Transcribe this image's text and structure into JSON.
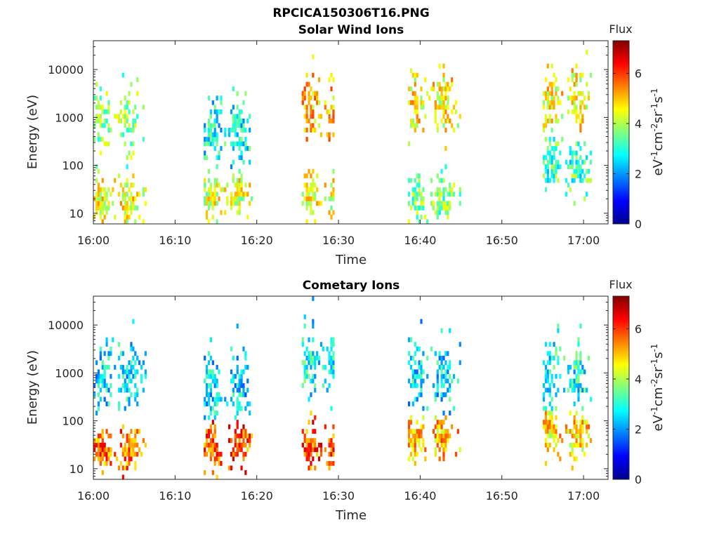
{
  "figure_title": "RPCICA150306T16.PNG",
  "chart_data": [
    {
      "type": "heatmap",
      "title": "Solar Wind Ions",
      "xlabel": "Time",
      "ylabel": "Energy (eV)",
      "x_ticks": [
        "16:00",
        "16:10",
        "16:20",
        "16:30",
        "16:40",
        "16:50",
        "17:00"
      ],
      "y_ticks": [
        "10",
        "100",
        "1000",
        "10000"
      ],
      "y_scale": "log",
      "ylim": [
        6,
        40000
      ],
      "xlim_minutes": [
        0,
        63
      ],
      "colorbar": {
        "title": "Flux",
        "label": "eV-1cm-2sr-1s-1",
        "range": [
          0,
          7.3
        ],
        "ticks": [
          "0",
          "2",
          "4",
          "6"
        ],
        "colormap": "jet"
      },
      "bursts": [
        {
          "start_min": 0.0,
          "end_min": 6.5,
          "low_e": 15,
          "low_flux": 4.5,
          "high_e": 900,
          "high_flux": 3.8
        },
        {
          "start_min": 13.5,
          "end_min": 19.5,
          "low_e": 25,
          "low_flux": 4.3,
          "high_e": 500,
          "high_flux": 2.8
        },
        {
          "start_min": 25.5,
          "end_min": 29.5,
          "low_e": 25,
          "low_flux": 4.4,
          "high_e": 1500,
          "high_flux": 5.0
        },
        {
          "start_min": 38.5,
          "end_min": 45.0,
          "low_e": 20,
          "low_flux": 3.6,
          "high_e": 1800,
          "high_flux": 4.6
        },
        {
          "start_min": 55.0,
          "end_min": 61.0,
          "low_e": 100,
          "low_flux": 3.2,
          "high_e": 2000,
          "high_flux": 4.5
        }
      ]
    },
    {
      "type": "heatmap",
      "title": "Cometary Ions",
      "xlabel": "Time",
      "ylabel": "Energy (eV)",
      "x_ticks": [
        "16:00",
        "16:10",
        "16:20",
        "16:30",
        "16:40",
        "16:50",
        "17:00"
      ],
      "y_ticks": [
        "10",
        "100",
        "1000",
        "10000"
      ],
      "y_scale": "log",
      "ylim": [
        6,
        40000
      ],
      "xlim_minutes": [
        0,
        63
      ],
      "colorbar": {
        "title": "Flux",
        "label": "eV-1cm-2sr-1s-1",
        "range": [
          0,
          7.3
        ],
        "ticks": [
          "0",
          "2",
          "4",
          "6"
        ],
        "colormap": "jet"
      },
      "bursts": [
        {
          "start_min": 0.0,
          "end_min": 6.5,
          "low_e": 25,
          "low_flux": 5.6,
          "high_e": 800,
          "high_flux": 2.5
        },
        {
          "start_min": 13.5,
          "end_min": 19.5,
          "low_e": 30,
          "low_flux": 5.8,
          "high_e": 500,
          "high_flux": 2.5
        },
        {
          "start_min": 25.5,
          "end_min": 29.5,
          "low_e": 30,
          "low_flux": 5.8,
          "high_e": 1500,
          "high_flux": 2.8
        },
        {
          "start_min": 38.5,
          "end_min": 45.0,
          "low_e": 40,
          "low_flux": 5.0,
          "high_e": 800,
          "high_flux": 2.6
        },
        {
          "start_min": 55.0,
          "end_min": 61.0,
          "low_e": 60,
          "low_flux": 4.8,
          "high_e": 800,
          "high_flux": 2.8
        }
      ]
    }
  ]
}
